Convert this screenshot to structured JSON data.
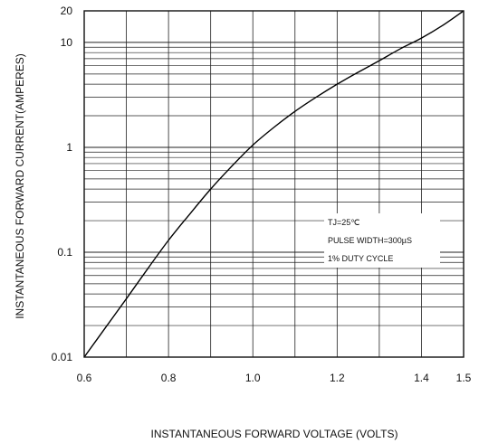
{
  "chart_data": {
    "type": "line",
    "xlabel": "INSTANTANEOUS FORWARD VOLTAGE (VOLTS)",
    "ylabel": "INSTANTANEOUS FORWARD CURRENT(AMPERES)",
    "xlim": [
      0.6,
      1.5
    ],
    "ylim": [
      0.01,
      20
    ],
    "yscale": "log",
    "grid": true,
    "x_tick_values": [
      0.6,
      0.8,
      1.0,
      1.2,
      1.4,
      1.5
    ],
    "x_tick_labels": [
      "0.6",
      "0.8",
      "1.0",
      "1.2",
      "1.4",
      "1.5"
    ],
    "y_tick_values": [
      0.01,
      0.1,
      1,
      10,
      20
    ],
    "y_tick_labels": [
      "0.01",
      "0.1",
      "1",
      "10",
      "20"
    ],
    "annotations": [
      "TJ=25℃",
      "PULSE WIDTH=300µS",
      "1% DUTY CYCLE"
    ],
    "series": [
      {
        "x": [
          0.6,
          0.65,
          0.7,
          0.75,
          0.8,
          0.85,
          0.9,
          0.95,
          1.0,
          1.05,
          1.1,
          1.15,
          1.2,
          1.25,
          1.3,
          1.35,
          1.4,
          1.45,
          1.5
        ],
        "y": [
          0.01,
          0.019,
          0.036,
          0.069,
          0.13,
          0.23,
          0.4,
          0.66,
          1.05,
          1.55,
          2.2,
          3.0,
          4.0,
          5.2,
          6.7,
          8.7,
          11.0,
          14.5,
          20
        ]
      }
    ]
  }
}
